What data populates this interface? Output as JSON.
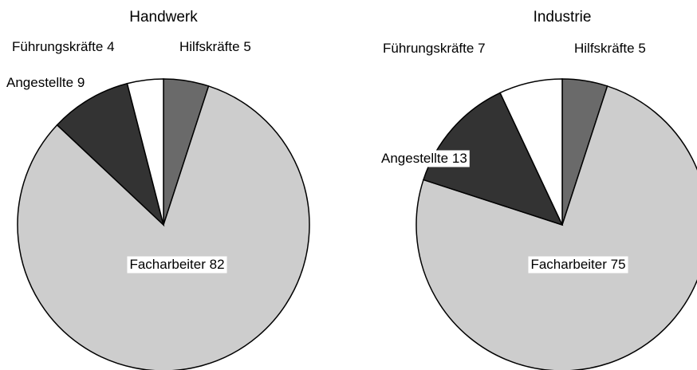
{
  "chart_data": [
    {
      "type": "pie",
      "title": "Handwerk",
      "categories": [
        "Hilfskräfte",
        "Facharbeiter",
        "Angestellte",
        "Führungskräfte"
      ],
      "values": [
        5,
        82,
        9,
        4
      ],
      "colors": [
        "#6a6a6a",
        "#cdcdcd",
        "#333333",
        "#ffffff"
      ]
    },
    {
      "type": "pie",
      "title": "Industrie",
      "categories": [
        "Hilfskräfte",
        "Facharbeiter",
        "Angestellte",
        "Führungskräfte"
      ],
      "values": [
        5,
        75,
        13,
        7
      ],
      "colors": [
        "#6a6a6a",
        "#cdcdcd",
        "#333333",
        "#ffffff"
      ]
    }
  ]
}
